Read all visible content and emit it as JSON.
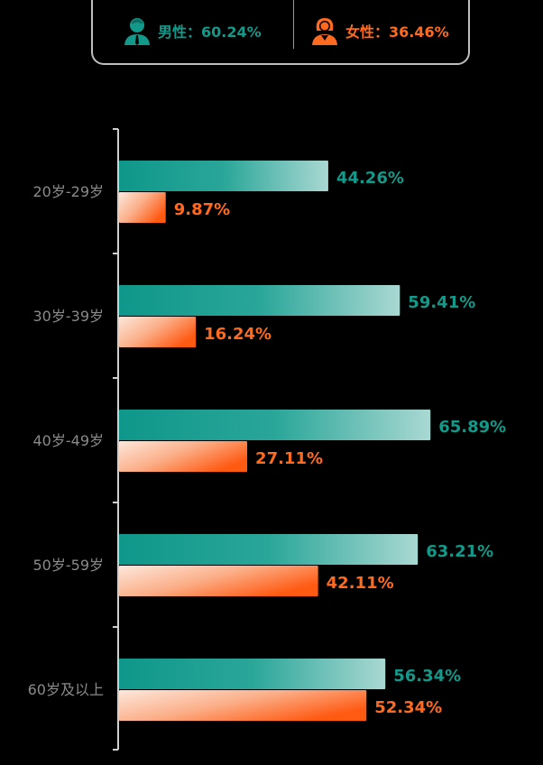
{
  "legend": {
    "male": {
      "label": "男性：60.24%",
      "icon": "male-user-icon",
      "color": "#13998a"
    },
    "female": {
      "label": "女性：36.46%",
      "icon": "female-user-icon",
      "color": "#ff6a1e"
    }
  },
  "chart_data": {
    "type": "bar",
    "orientation": "horizontal",
    "categories": [
      "20岁-29岁",
      "30岁-39岁",
      "40岁-49岁",
      "50岁-59岁",
      "60岁及以上"
    ],
    "series": [
      {
        "name": "男性",
        "values": [
          44.26,
          59.41,
          65.89,
          63.21,
          56.34
        ],
        "labels": [
          "44.26%",
          "59.41%",
          "65.89%",
          "63.21%",
          "56.34%"
        ],
        "color": "#13998a"
      },
      {
        "name": "女性",
        "values": [
          9.87,
          16.24,
          27.11,
          42.11,
          52.34
        ],
        "labels": [
          "9.87%",
          "16.24%",
          "27.11%",
          "42.11%",
          "52.34%"
        ],
        "color": "#ff6a1e"
      }
    ],
    "grid": false
  }
}
